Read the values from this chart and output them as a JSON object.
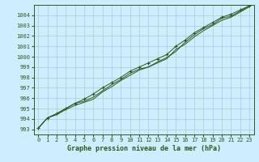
{
  "xlabel": "Graphe pression niveau de la mer (hPa)",
  "bg_color": "#cceeff",
  "grid_color": "#aacccc",
  "line_color": "#2d5a1b",
  "xlim": [
    -0.5,
    23.5
  ],
  "ylim": [
    992.5,
    1005.0
  ],
  "yticks": [
    993,
    994,
    995,
    996,
    997,
    998,
    999,
    1000,
    1001,
    1002,
    1003,
    1004
  ],
  "xticks": [
    0,
    1,
    2,
    3,
    4,
    5,
    6,
    7,
    8,
    9,
    10,
    11,
    12,
    13,
    14,
    15,
    16,
    17,
    18,
    19,
    20,
    21,
    22,
    23
  ],
  "series1_x": [
    0,
    1,
    2,
    3,
    4,
    5,
    6,
    7,
    8,
    9,
    10,
    11,
    12,
    13,
    14,
    15,
    16,
    17,
    18,
    19,
    20,
    21,
    22,
    23
  ],
  "series1_y": [
    993.1,
    994.1,
    994.5,
    995.0,
    995.5,
    995.9,
    996.4,
    997.0,
    997.5,
    998.0,
    998.6,
    999.0,
    999.4,
    999.8,
    1000.2,
    1001.0,
    1001.6,
    1002.3,
    1002.8,
    1003.3,
    1003.8,
    1004.1,
    1004.5,
    1004.9
  ],
  "series2_x": [
    0,
    1,
    2,
    3,
    4,
    5,
    6,
    7,
    8,
    9,
    10,
    11,
    12,
    13,
    14,
    15,
    16,
    17,
    18,
    19,
    20,
    21,
    22,
    23
  ],
  "series2_y": [
    993.1,
    994.1,
    994.5,
    995.0,
    995.5,
    995.7,
    996.1,
    996.7,
    997.3,
    997.8,
    998.4,
    998.8,
    999.0,
    999.5,
    999.9,
    1000.5,
    1001.4,
    1002.1,
    1002.7,
    1003.1,
    1003.7,
    1003.9,
    1004.4,
    1004.9
  ],
  "series3_x": [
    0,
    1,
    2,
    3,
    4,
    5,
    6,
    7,
    8,
    9,
    10,
    11,
    12,
    13,
    14,
    15,
    16,
    17,
    18,
    19,
    20,
    21,
    22,
    23
  ],
  "series3_y": [
    993.1,
    994.1,
    994.4,
    994.9,
    995.3,
    995.6,
    995.9,
    996.6,
    997.1,
    997.7,
    998.2,
    998.7,
    999.0,
    999.4,
    999.8,
    1000.7,
    1001.2,
    1001.9,
    1002.5,
    1003.0,
    1003.5,
    1003.8,
    1004.3,
    1004.8
  ],
  "marker_x": [
    0,
    1,
    2,
    3,
    4,
    5,
    6,
    7,
    8,
    9,
    10,
    11,
    12,
    13,
    14,
    15,
    16,
    17,
    18,
    19,
    20,
    21,
    22,
    23
  ],
  "marker_y": [
    993.1,
    994.1,
    994.5,
    995.0,
    995.5,
    995.9,
    996.4,
    997.0,
    997.5,
    998.0,
    998.6,
    999.0,
    999.4,
    999.8,
    1000.2,
    1001.0,
    1001.6,
    1002.3,
    1002.8,
    1003.3,
    1003.8,
    1004.1,
    1004.5,
    1004.9
  ],
  "tick_fontsize": 5,
  "xlabel_fontsize": 6
}
